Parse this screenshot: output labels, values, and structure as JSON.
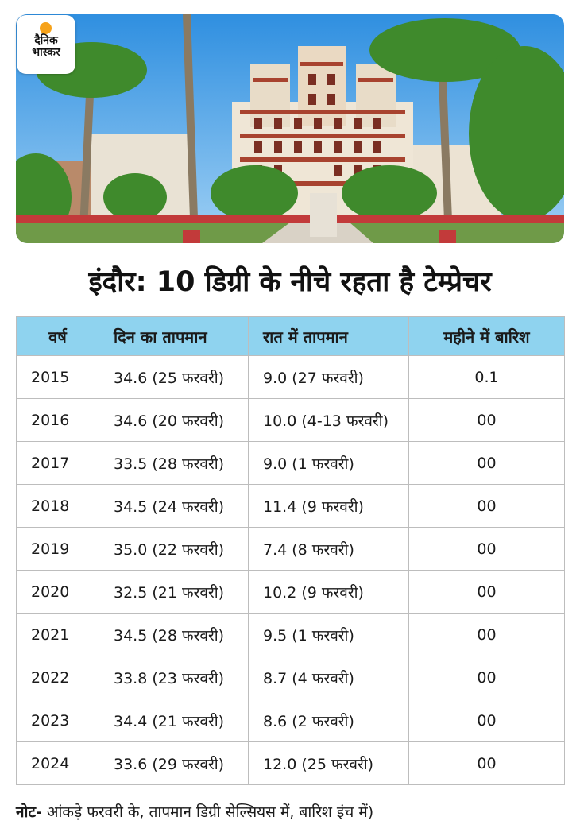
{
  "logo": {
    "line1": "दैनिक",
    "line2": "भास्कर"
  },
  "headline": "इंदौर: 10 डिग्री के नीचे रहता है टेम्प्रेचर",
  "table": {
    "headers": [
      "वर्ष",
      "दिन का तापमान",
      "रात में तापमान",
      "महीने में बारिश"
    ],
    "rows": [
      [
        "2015",
        "34.6 (25 फरवरी)",
        "9.0 (27 फरवरी)",
        "0.1"
      ],
      [
        "2016",
        "34.6 (20 फरवरी)",
        "10.0 (4-13 फरवरी)",
        "00"
      ],
      [
        "2017",
        "33.5 (28 फरवरी)",
        "9.0 (1 फरवरी)",
        "00"
      ],
      [
        "2018",
        "34.5 (24 फरवरी)",
        "11.4 (9 फरवरी)",
        "00"
      ],
      [
        "2019",
        "35.0 (22 फरवरी)",
        "7.4 (8 फरवरी)",
        "00"
      ],
      [
        "2020",
        "32.5 (21 फरवरी)",
        "10.2 (9 फरवरी)",
        "00"
      ],
      [
        "2021",
        "34.5 (28 फरवरी)",
        "9.5 (1 फरवरी)",
        "00"
      ],
      [
        "2022",
        "33.8 (23 फरवरी)",
        "8.7 (4 फरवरी)",
        "00"
      ],
      [
        "2023",
        "34.4 (21 फरवरी)",
        "8.6 (2 फरवरी)",
        "00"
      ],
      [
        "2024",
        "33.6 (29 फरवरी)",
        "12.0 (25 फरवरी)",
        "00"
      ]
    ]
  },
  "note": {
    "label": "नोट-",
    "text": " आंकड़े फरवरी के, तापमान डिग्री सेल्सियस में, बारिश इंच में)"
  },
  "colors": {
    "header_bg": "#8fd3ef",
    "border": "#bdbdbd",
    "logo_sun": "#f6a21a"
  }
}
